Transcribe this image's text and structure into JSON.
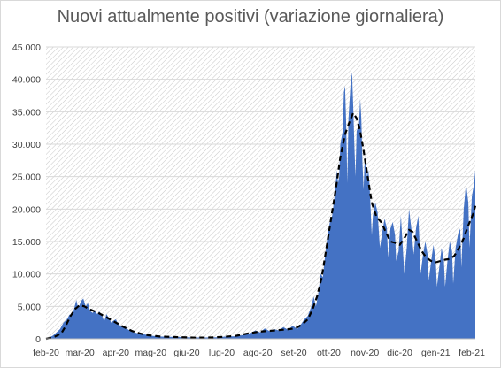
{
  "chart_data": {
    "type": "area",
    "title": "Nuovi attualmente positivi (variazione giornaliera)",
    "xlabel": "",
    "ylabel": "",
    "ylim": [
      0,
      45000
    ],
    "yticks": [
      0,
      5000,
      10000,
      15000,
      20000,
      25000,
      30000,
      35000,
      40000,
      45000
    ],
    "ytick_labels": [
      "0",
      "5.000",
      "10.000",
      "15.000",
      "20.000",
      "25.000",
      "30.000",
      "35.000",
      "40.000",
      "45.000"
    ],
    "xlim": [
      "2020-02-24",
      "2021-02-27"
    ],
    "x_ticks": [
      {
        "date": "2020-02-24",
        "label": "feb-20"
      },
      {
        "date": "2020-03-24",
        "label": "mar-20"
      },
      {
        "date": "2020-04-24",
        "label": "apr-20"
      },
      {
        "date": "2020-05-24",
        "label": "mag-20"
      },
      {
        "date": "2020-06-24",
        "label": "giu-20"
      },
      {
        "date": "2020-07-24",
        "label": "lug-20"
      },
      {
        "date": "2020-08-24",
        "label": "ago-20"
      },
      {
        "date": "2020-09-24",
        "label": "set-20"
      },
      {
        "date": "2020-10-24",
        "label": "ott-20"
      },
      {
        "date": "2020-11-24",
        "label": "nov-20"
      },
      {
        "date": "2020-12-24",
        "label": "dic-20"
      },
      {
        "date": "2021-01-24",
        "label": "gen-21"
      },
      {
        "date": "2021-02-24",
        "label": "feb-21"
      }
    ],
    "grid": true,
    "legend": "none",
    "series": [
      {
        "style": "filled-area",
        "color": "#4472c4",
        "points": [
          [
            "2020-02-24",
            0
          ],
          [
            "2020-02-27",
            200
          ],
          [
            "2020-03-01",
            500
          ],
          [
            "2020-03-04",
            1000
          ],
          [
            "2020-03-07",
            1500
          ],
          [
            "2020-03-10",
            2500
          ],
          [
            "2020-03-13",
            3000
          ],
          [
            "2020-03-15",
            3700
          ],
          [
            "2020-03-17",
            3800
          ],
          [
            "2020-03-19",
            4500
          ],
          [
            "2020-03-21",
            6000
          ],
          [
            "2020-03-22",
            5200
          ],
          [
            "2020-03-23",
            4800
          ],
          [
            "2020-03-25",
            5800
          ],
          [
            "2020-03-27",
            6200
          ],
          [
            "2020-03-29",
            5000
          ],
          [
            "2020-03-31",
            5500
          ],
          [
            "2020-04-02",
            4300
          ],
          [
            "2020-04-04",
            4000
          ],
          [
            "2020-04-06",
            4300
          ],
          [
            "2020-04-08",
            3800
          ],
          [
            "2020-04-10",
            4200
          ],
          [
            "2020-04-12",
            3600
          ],
          [
            "2020-04-14",
            2700
          ],
          [
            "2020-04-16",
            3800
          ],
          [
            "2020-04-18",
            3200
          ],
          [
            "2020-04-20",
            2500
          ],
          [
            "2020-04-22",
            2800
          ],
          [
            "2020-04-24",
            3000
          ],
          [
            "2020-04-26",
            2300
          ],
          [
            "2020-04-28",
            2000
          ],
          [
            "2020-05-01",
            1800
          ],
          [
            "2020-05-04",
            1500
          ],
          [
            "2020-05-07",
            1200
          ],
          [
            "2020-05-10",
            1000
          ],
          [
            "2020-05-14",
            800
          ],
          [
            "2020-05-18",
            700
          ],
          [
            "2020-05-22",
            550
          ],
          [
            "2020-05-26",
            450
          ],
          [
            "2020-06-01",
            350
          ],
          [
            "2020-06-08",
            300
          ],
          [
            "2020-06-15",
            280
          ],
          [
            "2020-06-22",
            250
          ],
          [
            "2020-07-01",
            200
          ],
          [
            "2020-07-10",
            200
          ],
          [
            "2020-07-20",
            250
          ],
          [
            "2020-07-28",
            350
          ],
          [
            "2020-08-05",
            400
          ],
          [
            "2020-08-12",
            600
          ],
          [
            "2020-08-18",
            900
          ],
          [
            "2020-08-22",
            1300
          ],
          [
            "2020-08-26",
            1000
          ],
          [
            "2020-08-30",
            1600
          ],
          [
            "2020-09-03",
            1200
          ],
          [
            "2020-09-07",
            1500
          ],
          [
            "2020-09-11",
            1300
          ],
          [
            "2020-09-15",
            1800
          ],
          [
            "2020-09-19",
            1400
          ],
          [
            "2020-09-23",
            2000
          ],
          [
            "2020-09-27",
            1500
          ],
          [
            "2020-09-30",
            2200
          ],
          [
            "2020-10-03",
            3000
          ],
          [
            "2020-10-06",
            3500
          ],
          [
            "2020-10-09",
            5000
          ],
          [
            "2020-10-11",
            6500
          ],
          [
            "2020-10-13",
            5000
          ],
          [
            "2020-10-15",
            7000
          ],
          [
            "2020-10-17",
            10000
          ],
          [
            "2020-10-19",
            9500
          ],
          [
            "2020-10-21",
            13000
          ],
          [
            "2020-10-23",
            16000
          ],
          [
            "2020-10-25",
            18000
          ],
          [
            "2020-10-27",
            19000
          ],
          [
            "2020-10-29",
            22000
          ],
          [
            "2020-10-31",
            26000
          ],
          [
            "2020-11-01",
            24000
          ],
          [
            "2020-11-02",
            25000
          ],
          [
            "2020-11-03",
            30000
          ],
          [
            "2020-11-05",
            32000
          ],
          [
            "2020-11-06",
            38000
          ],
          [
            "2020-11-07",
            39000
          ],
          [
            "2020-11-08",
            33000
          ],
          [
            "2020-11-09",
            24000
          ],
          [
            "2020-11-10",
            34000
          ],
          [
            "2020-11-12",
            40000
          ],
          [
            "2020-11-13",
            41000
          ],
          [
            "2020-11-14",
            36000
          ],
          [
            "2020-11-15",
            30000
          ],
          [
            "2020-11-16",
            25000
          ],
          [
            "2020-11-17",
            32000
          ],
          [
            "2020-11-19",
            33000
          ],
          [
            "2020-11-20",
            37000
          ],
          [
            "2020-11-21",
            34000
          ],
          [
            "2020-11-22",
            27000
          ],
          [
            "2020-11-23",
            23000
          ],
          [
            "2020-11-24",
            28000
          ],
          [
            "2020-11-26",
            25000
          ],
          [
            "2020-11-27",
            26000
          ],
          [
            "2020-11-28",
            24000
          ],
          [
            "2020-11-29",
            20000
          ],
          [
            "2020-11-30",
            16000
          ],
          [
            "2020-12-01",
            19000
          ],
          [
            "2020-12-03",
            21000
          ],
          [
            "2020-12-05",
            19500
          ],
          [
            "2020-12-07",
            14000
          ],
          [
            "2020-12-09",
            16500
          ],
          [
            "2020-12-11",
            18500
          ],
          [
            "2020-12-13",
            17000
          ],
          [
            "2020-12-14",
            12500
          ],
          [
            "2020-12-16",
            17000
          ],
          [
            "2020-12-18",
            18000
          ],
          [
            "2020-12-20",
            16000
          ],
          [
            "2020-12-21",
            12000
          ],
          [
            "2020-12-23",
            13500
          ],
          [
            "2020-12-25",
            19000
          ],
          [
            "2020-12-26",
            16000
          ],
          [
            "2020-12-28",
            10000
          ],
          [
            "2020-12-30",
            14000
          ],
          [
            "2021-01-01",
            20000
          ],
          [
            "2021-01-03",
            17000
          ],
          [
            "2021-01-05",
            13000
          ],
          [
            "2021-01-07",
            17000
          ],
          [
            "2021-01-09",
            19000
          ],
          [
            "2021-01-10",
            15000
          ],
          [
            "2021-01-11",
            10000
          ],
          [
            "2021-01-13",
            13000
          ],
          [
            "2021-01-15",
            15000
          ],
          [
            "2021-01-17",
            13000
          ],
          [
            "2021-01-18",
            9000
          ],
          [
            "2021-01-20",
            12000
          ],
          [
            "2021-01-22",
            14500
          ],
          [
            "2021-01-24",
            12000
          ],
          [
            "2021-01-25",
            8000
          ],
          [
            "2021-01-27",
            11000
          ],
          [
            "2021-01-29",
            14000
          ],
          [
            "2021-01-31",
            12000
          ],
          [
            "2021-02-01",
            8000
          ],
          [
            "2021-02-03",
            12000
          ],
          [
            "2021-02-05",
            15000
          ],
          [
            "2021-02-07",
            13500
          ],
          [
            "2021-02-08",
            8500
          ],
          [
            "2021-02-10",
            14000
          ],
          [
            "2021-02-12",
            16000
          ],
          [
            "2021-02-14",
            17000
          ],
          [
            "2021-02-15",
            11000
          ],
          [
            "2021-02-17",
            20000
          ],
          [
            "2021-02-19",
            24000
          ],
          [
            "2021-02-21",
            21000
          ],
          [
            "2021-02-22",
            14000
          ],
          [
            "2021-02-24",
            22000
          ],
          [
            "2021-02-26",
            24000
          ],
          [
            "2021-02-27",
            26000
          ]
        ]
      },
      {
        "style": "dashed-line",
        "color": "#000000",
        "points": [
          [
            "2020-02-24",
            0
          ],
          [
            "2020-03-01",
            200
          ],
          [
            "2020-03-08",
            800
          ],
          [
            "2020-03-12",
            2000
          ],
          [
            "2020-03-16",
            3500
          ],
          [
            "2020-03-20",
            4600
          ],
          [
            "2020-03-24",
            5200
          ],
          [
            "2020-03-28",
            5000
          ],
          [
            "2020-04-01",
            4600
          ],
          [
            "2020-04-05",
            4300
          ],
          [
            "2020-04-09",
            4000
          ],
          [
            "2020-04-13",
            3600
          ],
          [
            "2020-04-17",
            3200
          ],
          [
            "2020-04-21",
            2800
          ],
          [
            "2020-04-25",
            2400
          ],
          [
            "2020-05-01",
            1800
          ],
          [
            "2020-05-08",
            1200
          ],
          [
            "2020-05-15",
            800
          ],
          [
            "2020-05-22",
            550
          ],
          [
            "2020-06-01",
            350
          ],
          [
            "2020-06-10",
            300
          ],
          [
            "2020-06-20",
            250
          ],
          [
            "2020-07-01",
            180
          ],
          [
            "2020-07-15",
            200
          ],
          [
            "2020-07-25",
            300
          ],
          [
            "2020-08-05",
            450
          ],
          [
            "2020-08-15",
            800
          ],
          [
            "2020-08-25",
            1100
          ],
          [
            "2020-09-05",
            1250
          ],
          [
            "2020-09-15",
            1400
          ],
          [
            "2020-09-25",
            1600
          ],
          [
            "2020-10-01",
            2200
          ],
          [
            "2020-10-06",
            3000
          ],
          [
            "2020-10-10",
            4500
          ],
          [
            "2020-10-14",
            6500
          ],
          [
            "2020-10-18",
            9500
          ],
          [
            "2020-10-22",
            14000
          ],
          [
            "2020-10-26",
            18500
          ],
          [
            "2020-10-30",
            23000
          ],
          [
            "2020-11-03",
            28000
          ],
          [
            "2020-11-07",
            31500
          ],
          [
            "2020-11-11",
            33500
          ],
          [
            "2020-11-14",
            34800
          ],
          [
            "2020-11-17",
            34000
          ],
          [
            "2020-11-20",
            32000
          ],
          [
            "2020-11-23",
            29000
          ],
          [
            "2020-11-26",
            25500
          ],
          [
            "2020-11-30",
            21000
          ],
          [
            "2020-12-04",
            18800
          ],
          [
            "2020-12-08",
            18000
          ],
          [
            "2020-12-12",
            16500
          ],
          [
            "2020-12-16",
            15000
          ],
          [
            "2020-12-20",
            14800
          ],
          [
            "2020-12-24",
            14500
          ],
          [
            "2020-12-28",
            15500
          ],
          [
            "2021-01-01",
            16800
          ],
          [
            "2021-01-04",
            16500
          ],
          [
            "2021-01-08",
            15000
          ],
          [
            "2021-01-12",
            13500
          ],
          [
            "2021-01-16",
            12500
          ],
          [
            "2021-01-20",
            12000
          ],
          [
            "2021-01-24",
            11800
          ],
          [
            "2021-01-28",
            12000
          ],
          [
            "2021-02-01",
            12200
          ],
          [
            "2021-02-05",
            12300
          ],
          [
            "2021-02-09",
            12800
          ],
          [
            "2021-02-13",
            14000
          ],
          [
            "2021-02-17",
            15500
          ],
          [
            "2021-02-21",
            17500
          ],
          [
            "2021-02-25",
            19200
          ],
          [
            "2021-02-27",
            20500
          ]
        ]
      }
    ]
  },
  "colors": {
    "area_fill": "#4472c4",
    "moving_average": "#000000",
    "gridline": "#d9d9d9",
    "hatch": "#bfbfbf",
    "axis_text": "#404040",
    "title_text": "#595959"
  }
}
